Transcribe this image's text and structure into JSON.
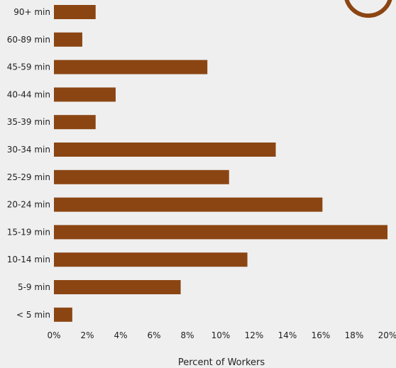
{
  "chart_data": {
    "type": "bar",
    "orientation": "horizontal",
    "categories": [
      "90+ min",
      "60-89 min",
      "45-59 min",
      "40-44 min",
      "35-39 min",
      "30-34 min",
      "25-29 min",
      "20-24 min",
      "15-19 min",
      "10-14 min",
      "5-9 min",
      "< 5 min"
    ],
    "values": [
      2.5,
      1.7,
      9.2,
      3.7,
      2.5,
      13.3,
      10.5,
      16.1,
      20.0,
      11.6,
      7.6,
      1.1
    ],
    "xlabel": "Percent of Workers",
    "ylabel": "",
    "xlim": [
      0,
      20
    ],
    "xticks": [
      0,
      2,
      4,
      6,
      8,
      10,
      12,
      14,
      16,
      18,
      20
    ],
    "xtick_labels": [
      "0%",
      "2%",
      "4%",
      "6%",
      "8%",
      "10%",
      "12%",
      "14%",
      "16%",
      "18%",
      "20%"
    ],
    "bar_color": "#8b4513",
    "grid": false,
    "legend": "none"
  }
}
